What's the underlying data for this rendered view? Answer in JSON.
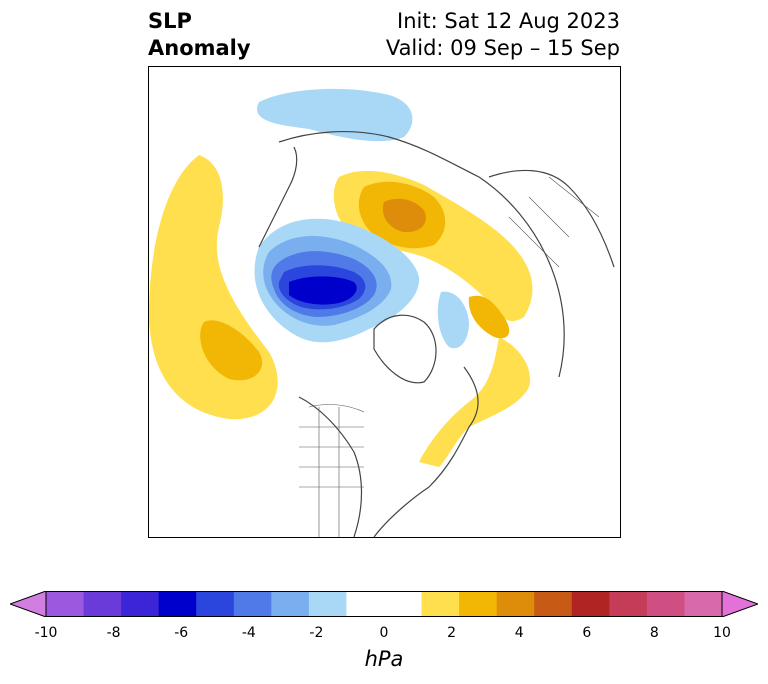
{
  "title": {
    "left_line1": "SLP",
    "left_line2": "Anomaly",
    "init": "Init: Sat 12 Aug 2023",
    "valid": "Valid: 09 Sep – 15 Sep"
  },
  "colorbar": {
    "label": "hPa",
    "min": -10,
    "max": 10,
    "ticks": [
      "-10",
      "-8",
      "-6",
      "-4",
      "-2",
      "0",
      "2",
      "4",
      "6",
      "8",
      "10"
    ],
    "colors": [
      "#9b59e0",
      "#6a3bd9",
      "#3b25d6",
      "#0000cc",
      "#2a46dd",
      "#4f7ae8",
      "#79afee",
      "#a9d8f7",
      "#ffffff",
      "#ffffff",
      "#ffdf4d",
      "#f2b705",
      "#dd8d0a",
      "#c75b16",
      "#b12424",
      "#c43c57",
      "#cf4f82",
      "#d86aab"
    ],
    "under_color": "#d27de0",
    "over_color": "#e272d8"
  },
  "map": {
    "projection": "north polar stereographic",
    "features": [
      "coastlines",
      "country borders",
      "state/province borders"
    ]
  }
}
